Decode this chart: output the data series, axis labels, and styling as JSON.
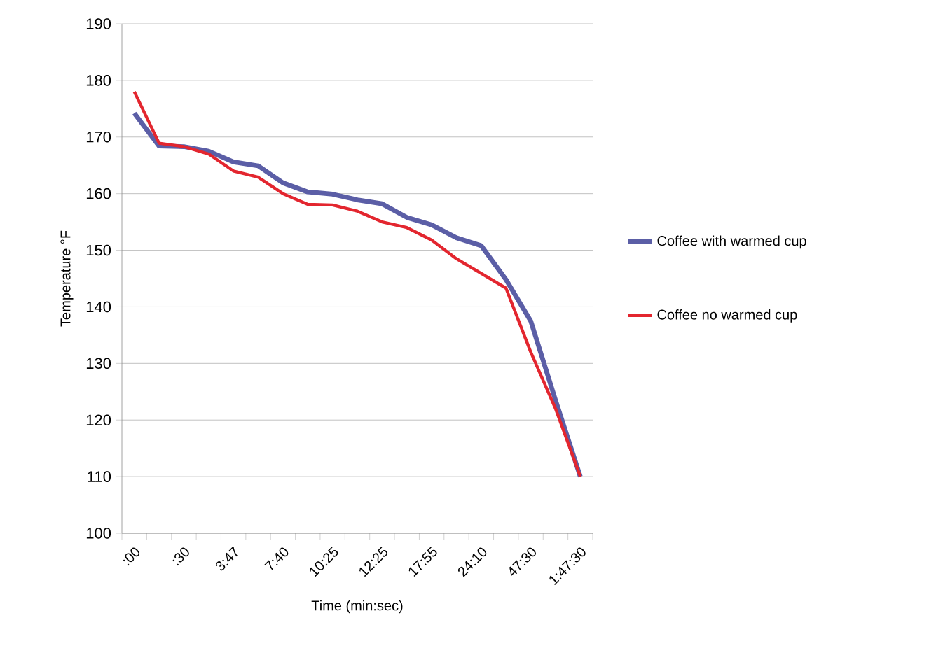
{
  "chart_data": {
    "type": "line",
    "xlabel": "Time (min:sec)",
    "ylabel": "Temperature °F",
    "categories": [
      ":00",
      null,
      ":30",
      null,
      "3:47",
      null,
      "7:40",
      null,
      "10:25",
      null,
      "12:25",
      null,
      "17:55",
      null,
      "24:10",
      null,
      "47:30",
      null,
      "1:47:30"
    ],
    "series": [
      {
        "name": "Coffee with warmed cup",
        "color": "#5b5ea6",
        "values": [
          174.2,
          168.4,
          168.3,
          167.5,
          165.6,
          164.9,
          161.9,
          160.3,
          159.9,
          158.9,
          158.2,
          155.8,
          154.5,
          152.2,
          150.8,
          144.8,
          137.5,
          123.5,
          110
        ]
      },
      {
        "name": "Coffee no warmed cup",
        "color": "#e3262f",
        "values": [
          178,
          168.9,
          168.3,
          167,
          164,
          162.9,
          160,
          158.1,
          158,
          156.9,
          155,
          154,
          151.8,
          148.5,
          145.9,
          143.3,
          132,
          122,
          110
        ]
      }
    ],
    "ylim": [
      100,
      190
    ],
    "yticks": [
      100,
      110,
      120,
      130,
      140,
      150,
      160,
      170,
      180,
      190
    ],
    "grid": "y",
    "legend": "right",
    "marker": "none",
    "line_style": "solid"
  }
}
